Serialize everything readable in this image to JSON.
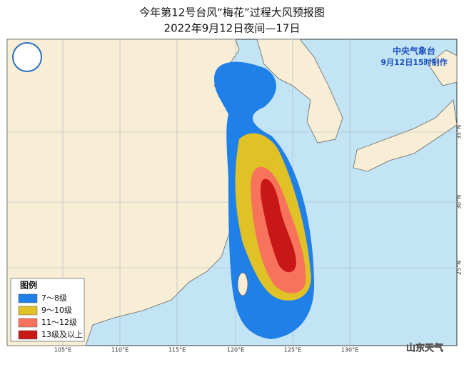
{
  "header": {
    "title": "今年第12号台风“梅花”过程大风预报图",
    "subtitle": "2022年9月12日夜间—17日"
  },
  "agency": {
    "name": "中央气象台",
    "issued": "9月12日15时制作"
  },
  "legend": {
    "title": "图例",
    "items": [
      {
        "label": "7～8级",
        "color": "#1f80e8"
      },
      {
        "label": "9～10级",
        "color": "#e0c126"
      },
      {
        "label": "11～12级",
        "color": "#f7735c"
      },
      {
        "label": "13级及以上",
        "color": "#c91616"
      }
    ]
  },
  "lon_labels": [
    "105°E",
    "110°E",
    "115°E",
    "120°E",
    "125°E",
    "130°E"
  ],
  "lat_labels": [
    "35°N",
    "30°N",
    "25°N"
  ],
  "watermark": "山东天气"
}
